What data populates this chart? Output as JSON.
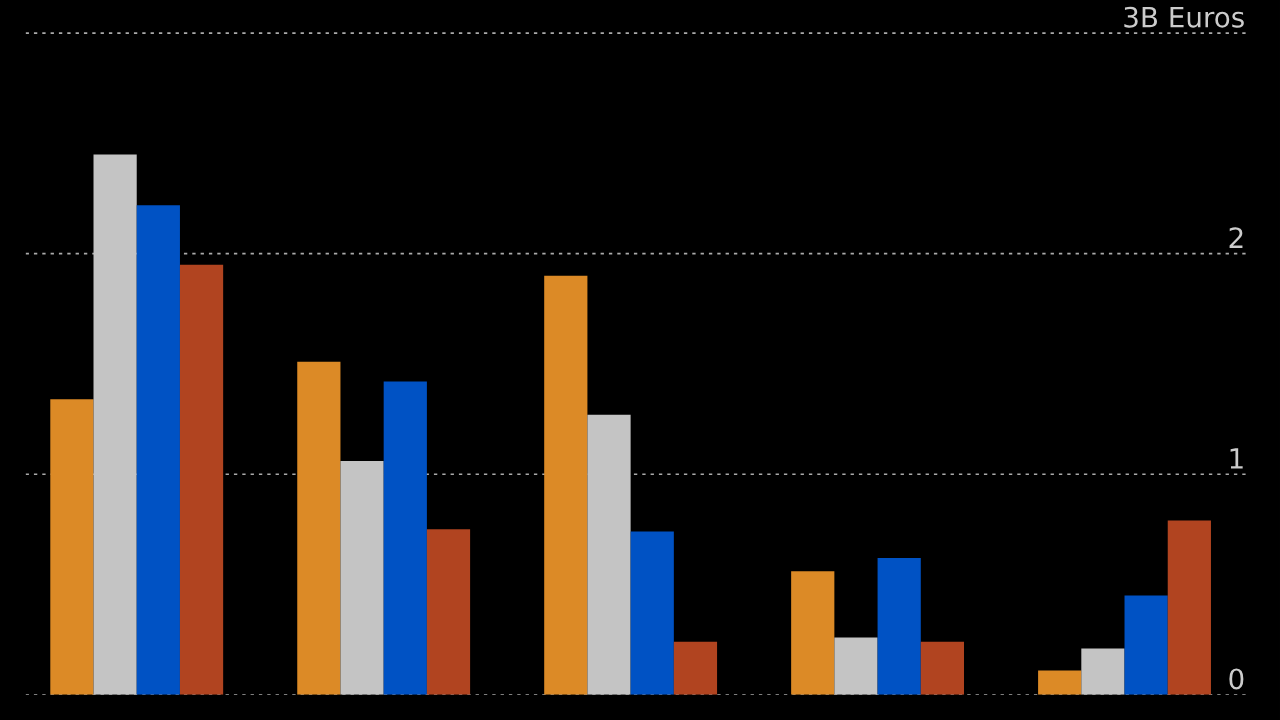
{
  "chart_data": {
    "type": "bar",
    "categories": [
      null,
      null,
      null,
      null,
      null
    ],
    "series": [
      {
        "color": "#dc8a26",
        "values": [
          1.34,
          1.51,
          1.9,
          0.56,
          0.11
        ]
      },
      {
        "color": "#c4c4c4",
        "values": [
          2.45,
          1.06,
          1.27,
          0.26,
          0.21
        ]
      },
      {
        "color": "#0052c4",
        "values": [
          2.22,
          1.42,
          0.74,
          0.62,
          0.45
        ]
      },
      {
        "color": "#b14420",
        "values": [
          1.95,
          0.75,
          0.24,
          0.24,
          0.79
        ]
      }
    ],
    "ylim": [
      0,
      3.15
    ],
    "yticks": [
      0,
      1,
      2,
      {
        "value": 3,
        "label": "3B Euros"
      }
    ],
    "grid": "y"
  }
}
